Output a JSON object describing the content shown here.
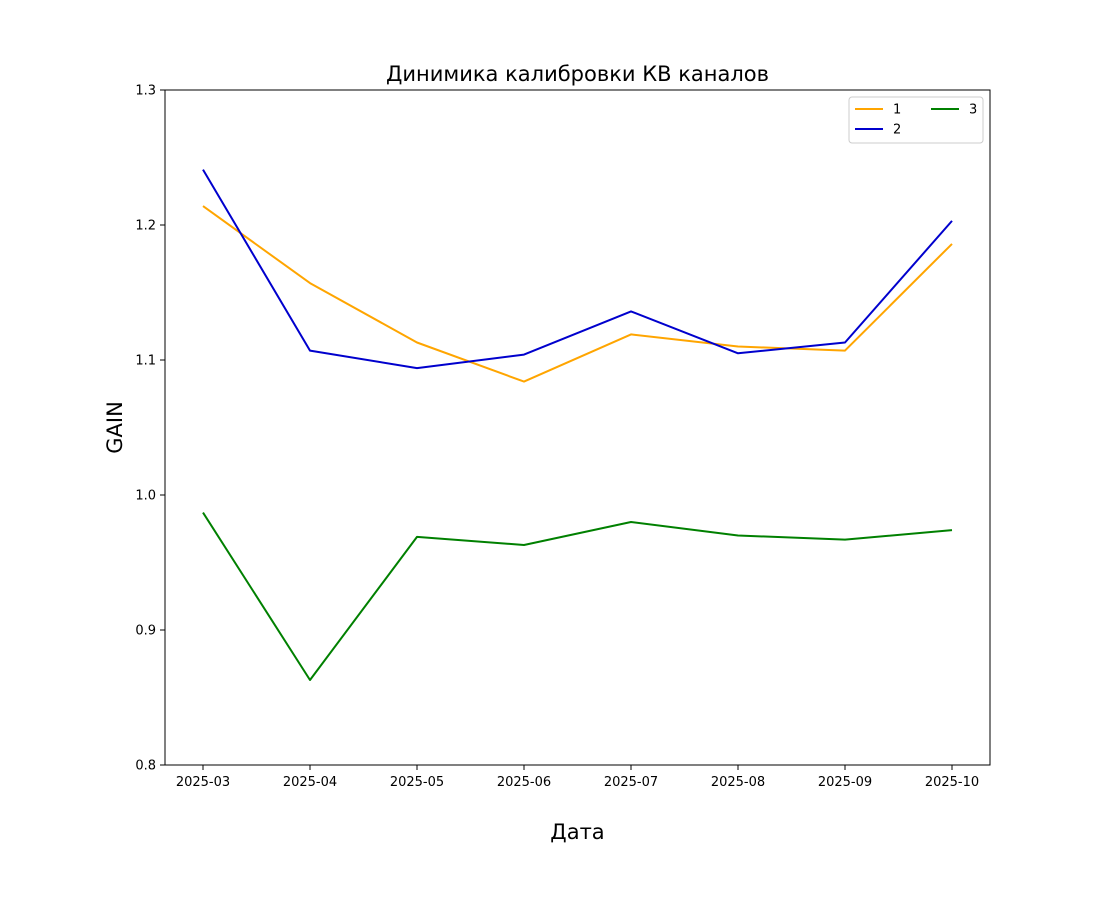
{
  "chart_data": {
    "type": "line",
    "title": "Динимика калибровки КВ каналов",
    "xlabel": "Дата",
    "ylabel": "GAIN",
    "categories": [
      "2025-03",
      "2025-04",
      "2025-05",
      "2025-06",
      "2025-07",
      "2025-08",
      "2025-09",
      "2025-10"
    ],
    "ylim": [
      0.8,
      1.3
    ],
    "yticks": [
      "0.8",
      "0.9",
      "1.0",
      "1.1",
      "1.2",
      "1.3"
    ],
    "grid": false,
    "legend_position": "top-right",
    "legend_columns": 2,
    "series": [
      {
        "name": "1",
        "color": "#FFA500",
        "values": [
          1.214,
          1.157,
          1.113,
          1.084,
          1.119,
          1.11,
          1.107,
          1.186
        ]
      },
      {
        "name": "2",
        "color": "#0000CD",
        "values": [
          1.241,
          1.107,
          1.094,
          1.104,
          1.136,
          1.105,
          1.113,
          1.203
        ]
      },
      {
        "name": "3",
        "color": "#008000",
        "values": [
          0.987,
          0.863,
          0.969,
          0.963,
          0.98,
          0.97,
          0.967,
          0.974
        ]
      }
    ]
  }
}
